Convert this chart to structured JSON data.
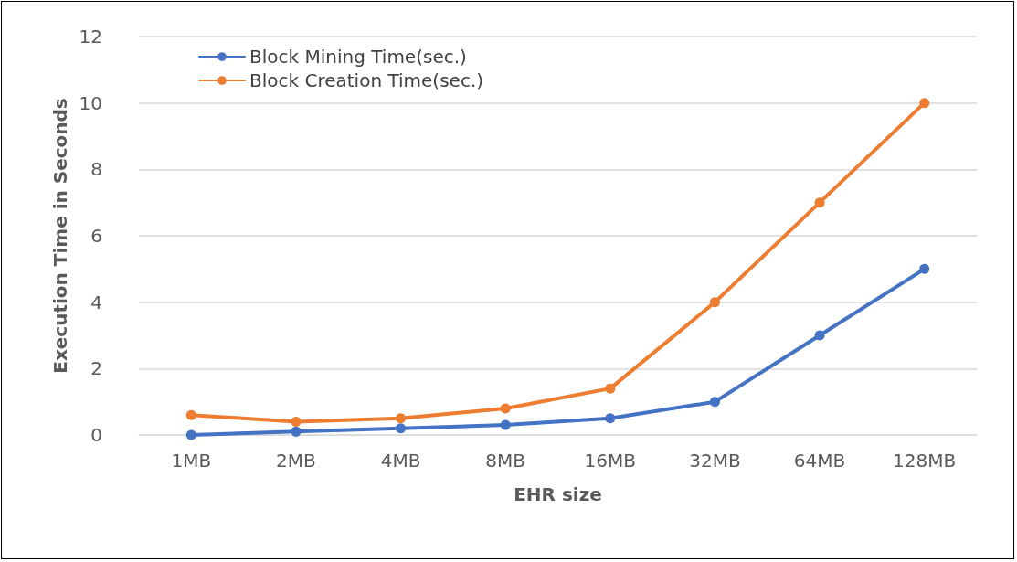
{
  "chart_data": {
    "type": "line",
    "xlabel": "EHR size",
    "ylabel": "Execution Time in Seconds",
    "categories": [
      "1MB",
      "2MB",
      "4MB",
      "8MB",
      "16MB",
      "32MB",
      "64MB",
      "128MB"
    ],
    "series": [
      {
        "name": "Block Mining Time(sec.)",
        "color": "#4472c4",
        "values": [
          0,
          0.1,
          0.2,
          0.3,
          0.5,
          1,
          3,
          5
        ]
      },
      {
        "name": "Block Creation Time(sec.)",
        "color": "#ed7d31",
        "values": [
          0.6,
          0.4,
          0.5,
          0.8,
          1.4,
          4,
          7,
          10
        ]
      }
    ],
    "ylim": [
      0,
      12
    ],
    "yticks": [
      0,
      2,
      4,
      6,
      8,
      10,
      12
    ],
    "grid": "y",
    "legend": "top left",
    "marker": "circle",
    "line_style": "solid"
  }
}
